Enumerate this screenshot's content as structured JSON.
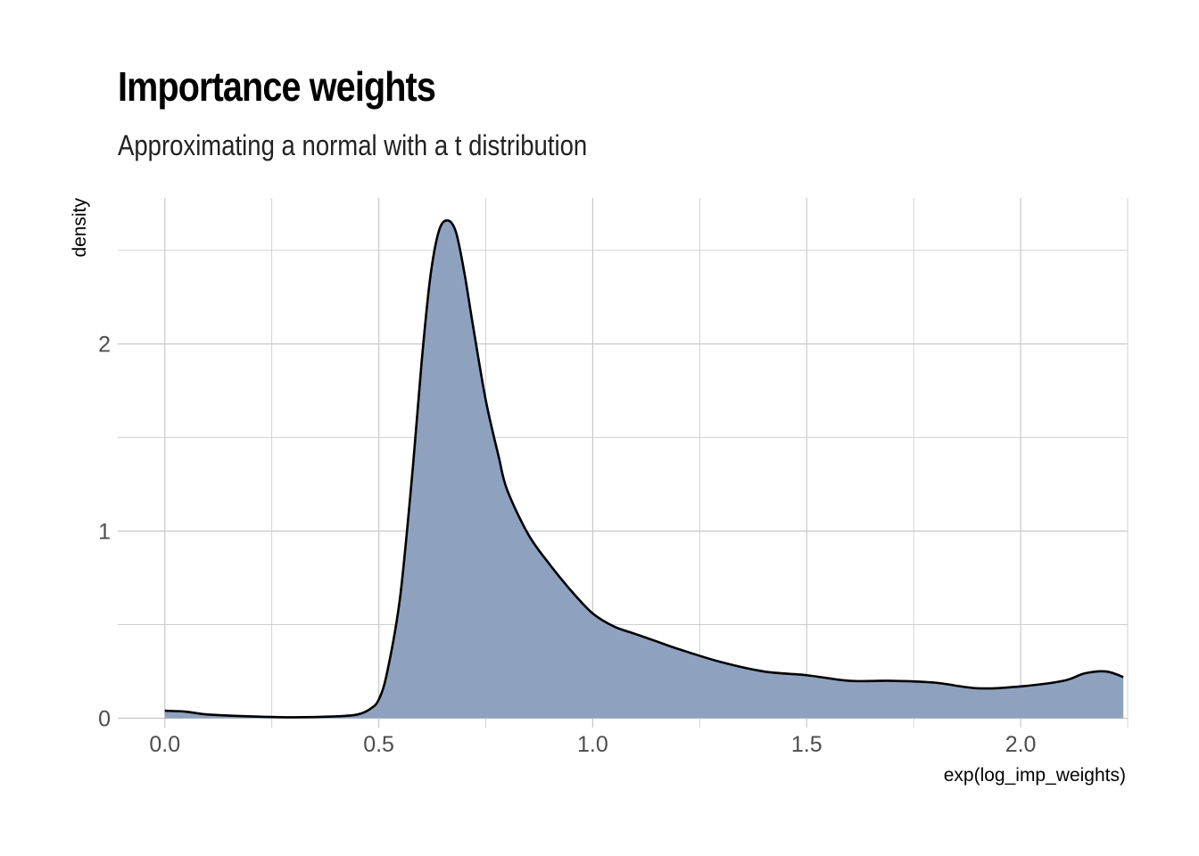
{
  "chart_data": {
    "type": "area",
    "title": "Importance weights",
    "subtitle": "Approximating a normal with a t distribution",
    "xlabel": "exp(log_imp_weights)",
    "ylabel": "density",
    "xlim": [
      -0.11,
      2.25
    ],
    "ylim": [
      -0.05,
      2.78
    ],
    "x_ticks": [
      0.0,
      0.5,
      1.0,
      1.5,
      2.0
    ],
    "x_tick_labels": [
      "0.0",
      "0.5",
      "1.0",
      "1.5",
      "2.0"
    ],
    "y_ticks": [
      0,
      1,
      2
    ],
    "y_tick_labels": [
      "0",
      "1",
      "2"
    ],
    "grid": true,
    "legend": "none",
    "fill_color": "#8a9fbd",
    "line_color": "#000000",
    "grid_color": "#c8c8c8",
    "series": [
      {
        "x": [
          0.0,
          0.05,
          0.1,
          0.2,
          0.3,
          0.4,
          0.45,
          0.48,
          0.5,
          0.52,
          0.55,
          0.58,
          0.6,
          0.62,
          0.64,
          0.66,
          0.68,
          0.7,
          0.72,
          0.75,
          0.78,
          0.8,
          0.85,
          0.9,
          0.95,
          1.0,
          1.05,
          1.1,
          1.15,
          1.2,
          1.3,
          1.4,
          1.5,
          1.6,
          1.7,
          1.8,
          1.9,
          2.0,
          2.1,
          2.15,
          2.2,
          2.24
        ],
        "y": [
          0.04,
          0.035,
          0.02,
          0.01,
          0.005,
          0.01,
          0.02,
          0.05,
          0.1,
          0.25,
          0.65,
          1.35,
          1.9,
          2.35,
          2.6,
          2.66,
          2.6,
          2.38,
          2.1,
          1.7,
          1.4,
          1.22,
          0.98,
          0.82,
          0.68,
          0.56,
          0.49,
          0.45,
          0.41,
          0.37,
          0.3,
          0.25,
          0.23,
          0.2,
          0.2,
          0.19,
          0.16,
          0.17,
          0.2,
          0.24,
          0.25,
          0.22
        ]
      }
    ]
  }
}
